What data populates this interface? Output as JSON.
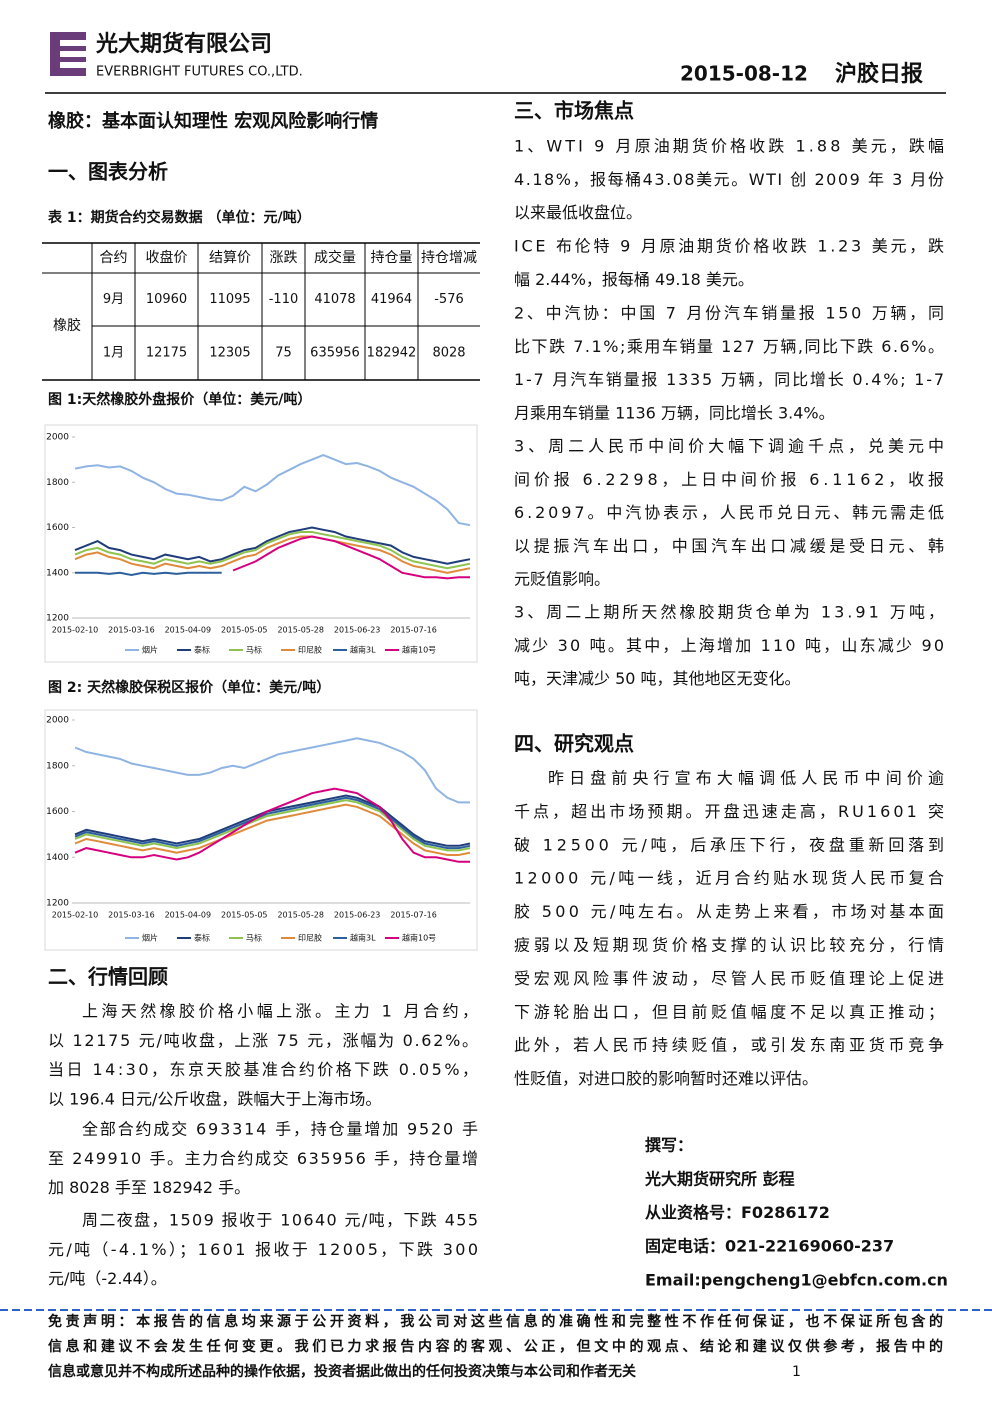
{
  "header": {
    "company_cn": "光大期货有限公司",
    "company_en": "EVERBRIGHT FUTURES CO.,LTD.",
    "date": "2015-08-12",
    "report": "沪胶日报"
  },
  "title": "橡胶：基本面认知理性 宏观风险影响行情",
  "section1": {
    "heading": "一、图表分析",
    "table_caption": "表 1：期货合约交易数据 （单位：元/吨）",
    "table": {
      "header": [
        "合约",
        "收盘价",
        "结算价",
        "涨跌",
        "成交量",
        "持仓量",
        "持仓增减"
      ],
      "row_label": "橡胶",
      "rows": [
        [
          "9月",
          10960,
          11095,
          -110,
          41078,
          41964,
          -576
        ],
        [
          "1月",
          12175,
          12305,
          75,
          635956,
          182942,
          8028
        ]
      ]
    }
  },
  "chart_data": [
    {
      "type": "line",
      "title": "图 1:天然橡胶外盘报价（单位：美元/吨）",
      "categories": [
        "2015-02-10",
        null,
        null,
        null,
        null,
        "2015-03-16",
        null,
        null,
        null,
        null,
        "2015-04-09",
        null,
        null,
        null,
        null,
        "2015-05-05",
        null,
        null,
        null,
        null,
        "2015-05-28",
        null,
        null,
        null,
        null,
        "2015-06-23",
        null,
        null,
        null,
        null,
        "2015-07-16",
        null,
        null,
        null,
        null,
        null
      ],
      "ylim": [
        1200,
        2000
      ],
      "yticks": [
        1200,
        1400,
        1600,
        1800,
        2000
      ],
      "grid": false,
      "series": [
        {
          "name": "烟片",
          "color": "#8fb4e3",
          "values": [
            1860,
            1870,
            1875,
            1865,
            1870,
            1850,
            1820,
            1800,
            1770,
            1750,
            1745,
            1735,
            1725,
            1720,
            1740,
            1780,
            1760,
            1790,
            1830,
            1855,
            1880,
            1900,
            1920,
            1900,
            1880,
            1885,
            1870,
            1850,
            1820,
            1800,
            1780,
            1750,
            1720,
            1680,
            1620,
            1610
          ]
        },
        {
          "name": "泰标",
          "color": "#1f3d7a",
          "values": [
            1500,
            1520,
            1540,
            1510,
            1500,
            1480,
            1470,
            1460,
            1480,
            1470,
            1460,
            1470,
            1450,
            1460,
            1480,
            1500,
            1510,
            1540,
            1560,
            1580,
            1590,
            1600,
            1590,
            1580,
            1560,
            1550,
            1540,
            1530,
            1520,
            1490,
            1470,
            1460,
            1450,
            1440,
            1450,
            1460
          ]
        },
        {
          "name": "马标",
          "color": "#8fc34f",
          "values": [
            1480,
            1500,
            1510,
            1490,
            1480,
            1460,
            1450,
            1440,
            1460,
            1450,
            1440,
            1450,
            1440,
            1450,
            1470,
            1490,
            1500,
            1530,
            1550,
            1570,
            1580,
            1580,
            1570,
            1560,
            1550,
            1540,
            1530,
            1520,
            1500,
            1470,
            1450,
            1440,
            1430,
            1420,
            1430,
            1440
          ]
        },
        {
          "name": "印尼胶",
          "color": "#e08a3c",
          "values": [
            1460,
            1480,
            1490,
            1470,
            1460,
            1440,
            1430,
            1420,
            1440,
            1430,
            1420,
            1430,
            1420,
            1430,
            1450,
            1470,
            1480,
            1510,
            1530,
            1550,
            1560,
            1560,
            1550,
            1540,
            1530,
            1520,
            1510,
            1500,
            1480,
            1450,
            1430,
            1420,
            1410,
            1400,
            1410,
            1420
          ]
        },
        {
          "name": "越南3L",
          "color": "#2b5f9e",
          "values": [
            1400,
            1400,
            1400,
            1395,
            1400,
            1390,
            1400,
            1395,
            1400,
            1395,
            1400,
            1400,
            1400,
            1400,
            null,
            null,
            null,
            null,
            null,
            null,
            null,
            null,
            null,
            null,
            null,
            null,
            null,
            null,
            null,
            null,
            null,
            null,
            null,
            null,
            null,
            null
          ]
        },
        {
          "name": "越南10号",
          "color": "#d6007f",
          "values": [
            null,
            null,
            null,
            null,
            null,
            null,
            null,
            null,
            null,
            null,
            null,
            null,
            null,
            null,
            1410,
            1430,
            1450,
            1480,
            1510,
            1530,
            1550,
            1560,
            1550,
            1540,
            1520,
            1500,
            1480,
            1460,
            1430,
            1400,
            1390,
            1380,
            1380,
            1375,
            1380,
            1380
          ]
        }
      ]
    },
    {
      "type": "line",
      "title": "图 2: 天然橡胶保税区报价（单位：美元/吨）",
      "categories": [
        "2015-02-10",
        null,
        null,
        null,
        null,
        "2015-03-16",
        null,
        null,
        null,
        null,
        "2015-04-09",
        null,
        null,
        null,
        null,
        "2015-05-05",
        null,
        null,
        null,
        null,
        "2015-05-28",
        null,
        null,
        null,
        null,
        "2015-06-23",
        null,
        null,
        null,
        null,
        "2015-07-16",
        null,
        null,
        null,
        null,
        null
      ],
      "ylim": [
        1200,
        2000
      ],
      "yticks": [
        1200,
        1400,
        1600,
        1800,
        2000
      ],
      "grid": false,
      "series": [
        {
          "name": "烟片",
          "color": "#8fb4e3",
          "values": [
            1880,
            1860,
            1850,
            1840,
            1830,
            1810,
            1800,
            1790,
            1780,
            1770,
            1760,
            1760,
            1770,
            1790,
            1800,
            1790,
            1810,
            1830,
            1850,
            1860,
            1870,
            1880,
            1890,
            1900,
            1910,
            1920,
            1910,
            1900,
            1880,
            1860,
            1830,
            1780,
            1700,
            1660,
            1640,
            1640
          ]
        },
        {
          "name": "泰标",
          "color": "#1f3d7a",
          "values": [
            1500,
            1520,
            1510,
            1500,
            1490,
            1480,
            1470,
            1480,
            1470,
            1460,
            1470,
            1480,
            1500,
            1520,
            1540,
            1560,
            1580,
            1600,
            1610,
            1620,
            1630,
            1640,
            1650,
            1660,
            1670,
            1660,
            1640,
            1620,
            1580,
            1540,
            1500,
            1470,
            1460,
            1450,
            1450,
            1460
          ]
        },
        {
          "name": "马标",
          "color": "#8fc34f",
          "values": [
            1480,
            1500,
            1490,
            1480,
            1470,
            1460,
            1450,
            1460,
            1450,
            1440,
            1450,
            1460,
            1480,
            1500,
            1520,
            1540,
            1560,
            1580,
            1590,
            1600,
            1610,
            1620,
            1630,
            1640,
            1650,
            1640,
            1620,
            1600,
            1560,
            1520,
            1480,
            1450,
            1440,
            1430,
            1430,
            1440
          ]
        },
        {
          "name": "印尼胶",
          "color": "#e08a3c",
          "values": [
            1460,
            1480,
            1470,
            1460,
            1450,
            1440,
            1430,
            1440,
            1430,
            1420,
            1430,
            1440,
            1460,
            1480,
            1500,
            1520,
            1540,
            1560,
            1570,
            1580,
            1590,
            1600,
            1610,
            1620,
            1630,
            1620,
            1600,
            1580,
            1540,
            1500,
            1460,
            1430,
            1420,
            1410,
            1410,
            1420
          ]
        },
        {
          "name": "越南3L",
          "color": "#2b5f9e",
          "values": [
            1490,
            1510,
            1500,
            1490,
            1480,
            1470,
            1460,
            1470,
            1460,
            1450,
            1460,
            1470,
            1490,
            1510,
            1530,
            1550,
            1570,
            1590,
            1600,
            1610,
            1620,
            1630,
            1640,
            1650,
            1660,
            1650,
            1630,
            1610,
            1570,
            1530,
            1490,
            1460,
            1450,
            1440,
            1440,
            1450
          ]
        },
        {
          "name": "越南10号",
          "color": "#d6007f",
          "values": [
            1420,
            1440,
            1430,
            1420,
            1410,
            1400,
            1400,
            1410,
            1400,
            1390,
            1400,
            1420,
            1450,
            1480,
            1510,
            1540,
            1570,
            1600,
            1620,
            1640,
            1660,
            1680,
            1690,
            1700,
            1690,
            1680,
            1650,
            1620,
            1560,
            1480,
            1420,
            1400,
            1400,
            1390,
            1380,
            1380
          ]
        }
      ]
    }
  ],
  "section2": {
    "heading": "二、行情回顾",
    "paragraphs": [
      [
        "上海天然橡胶价格小幅上涨。主力 1 月合约，",
        "以 12175 元/吨收盘，上涨 75 元，涨幅为 0.62%。",
        "当日 14:30，东京天胶基准合约价格下跌 0.05%，",
        "以 196.4 日元/公斤收盘，跌幅大于上海市场。"
      ],
      [
        "全部合约成交 693314 手，持仓量增加 9520 手",
        "至 249910 手。主力合约成交 635956 手，持仓量增",
        "加 8028 手至 182942 手。"
      ],
      [
        "周二夜盘，1509 报收于 10640 元/吨，下跌 455",
        "元/吨（-4.1%）；1601 报收于 12005，下跌 300",
        "元/吨（-2.44）。"
      ]
    ]
  },
  "section3": {
    "heading": "三、市场焦点",
    "paragraphs": [
      [
        "1、WTI 9 月原油期货价格收跌 1.88 美元，跌幅",
        "4.18%，报每桶43.08美元。WTI 创 2009 年 3 月份",
        "以来最低收盘位。"
      ],
      [
        "ICE 布伦特 9 月原油期货价格收跌 1.23 美元，跌",
        "幅 2.44%，报每桶 49.18 美元。"
      ],
      [
        "2、中汽协：中国 7 月份汽车销量报 150 万辆，同",
        "比下跌 7.1%;乘用车销量 127 万辆,同比下跌 6.6%。",
        "1-7 月汽车销量报 1335 万辆，同比增长 0.4%; 1-7",
        "月乘用车销量 1136 万辆，同比增长 3.4%。"
      ],
      [
        "3、周二人民币中间价大幅下调逾千点，兑美元中",
        "间价报 6.2298，上日中间价报 6.1162，收报",
        "6.2097。中汽协表示，人民币兑日元、韩元需走低",
        "以提振汽车出口，中国汽车出口减缓是受日元、韩",
        "元贬值影响。"
      ],
      [
        "3、周二上期所天然橡胶期货仓单为 13.91 万吨，",
        "减少 30 吨。其中，上海增加 110 吨，山东减少 90",
        "吨，天津减少 50 吨，其他地区无变化。"
      ]
    ]
  },
  "section4": {
    "heading": "四、研究观点",
    "paragraphs": [
      [
        "昨日盘前央行宣布大幅调低人民币中间价逾",
        "千点，超出市场预期。开盘迅速走高，RU1601 突",
        "破 12500 元/吨，后承压下行，夜盘重新回落到",
        "12000 元/吨一线，近月合约贴水现货人民币复合",
        "胶 500 元/吨左右。从走势上来看，市场对基本面",
        "疲弱以及短期现货价格支撑的认识比较充分，行情",
        "受宏观风险事件波动，尽管人民币贬值理论上促进",
        "下游轮胎出口，但目前贬值幅度不足以真正推动；",
        "此外，若人民币持续贬值，或引发东南亚货币竞争",
        "性贬值，对进口胶的影响暂时还难以评估。"
      ]
    ]
  },
  "author": {
    "label": "撰写：",
    "lines": [
      "光大期货研究所 彭程",
      "从业资格号：F0286172",
      "固定电话：021-22169060-237",
      "Email:pengcheng1@ebfcn.com.cn"
    ]
  },
  "disclaimer": [
    "免责声明：本报告的信息均来源于公开资料，我公司对这些信息的准确性和完整性不作任何保证，也不保证所包含的",
    "信息和建议不会发生任何变更。我们已力求报告内容的客观、公正，但文中的观点、结论和建议仅供参考，报告中的",
    "信息或意见并不构成所述品种的操作依据，投资者据此做出的任何投资决策与本公司和作者无关"
  ],
  "page_number": 1
}
